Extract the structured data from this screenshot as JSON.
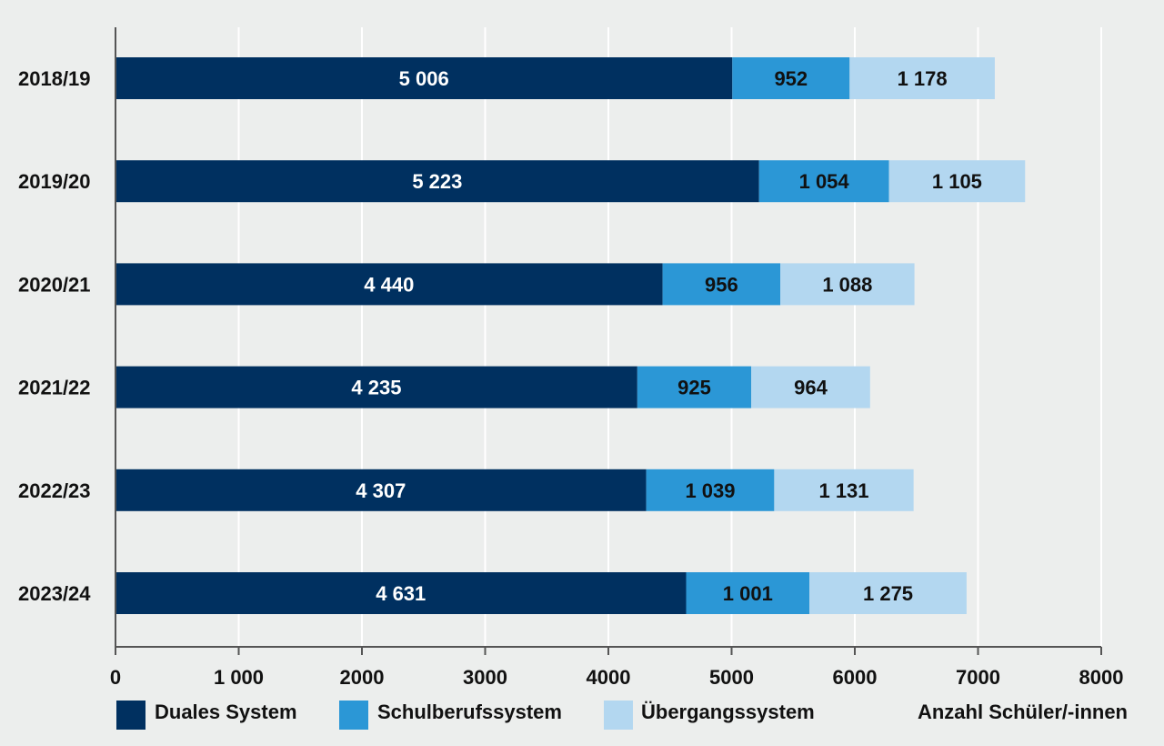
{
  "chart_data": {
    "type": "bar",
    "orientation": "horizontal",
    "stacked": true,
    "categories": [
      "2018/19",
      "2019/20",
      "2020/21",
      "2021/22",
      "2022/23",
      "2023/24"
    ],
    "series": [
      {
        "name": "Duales System",
        "values": [
          5006,
          5223,
          4440,
          4235,
          4307,
          4631
        ],
        "labels": [
          "5 006",
          "5 223",
          "4 440",
          "4 235",
          "4 307",
          "4 631"
        ],
        "color": "#003060",
        "label_color": "#ffffff"
      },
      {
        "name": "Schulberufssystem",
        "values": [
          952,
          1054,
          956,
          925,
          1039,
          1001
        ],
        "labels": [
          "952",
          "1 054",
          "956",
          "925",
          "1 039",
          "1 001"
        ],
        "color": "#2b97d6",
        "label_color": "#111111"
      },
      {
        "name": "Übergangssystem",
        "values": [
          1178,
          1105,
          1088,
          964,
          1131,
          1275
        ],
        "labels": [
          "1 178",
          "1 105",
          "1 088",
          "964",
          "1 131",
          "1 275"
        ],
        "color": "#b3d7f0",
        "label_color": "#111111"
      }
    ],
    "xlim": [
      0,
      8000
    ],
    "xticks": [
      0,
      1000,
      2000,
      3000,
      4000,
      5000,
      6000,
      7000,
      8000
    ],
    "xtick_labels": [
      "0",
      "1 000",
      "2000",
      "3000",
      "4000",
      "5000",
      "6000",
      "7000",
      "8000"
    ],
    "xlabel": "Anzahl Schüler/-innen",
    "grid": true,
    "legend_position": "bottom"
  }
}
